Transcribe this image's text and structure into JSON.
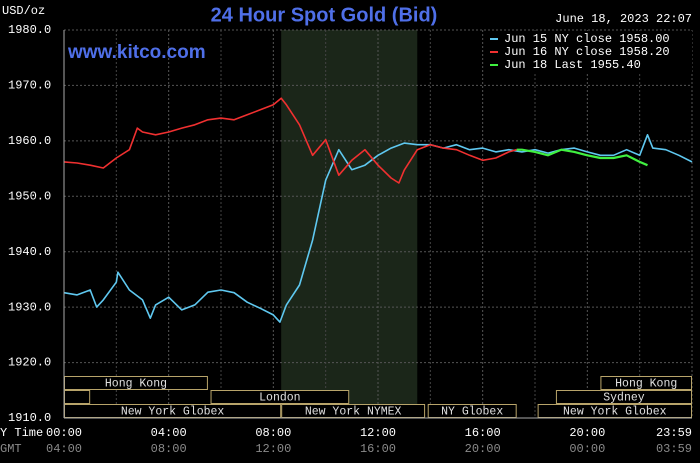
{
  "chart_data": {
    "type": "line",
    "title": "24 Hour Spot Gold (Bid)",
    "y_unit": "USD/oz",
    "timestamp": "June 18, 2023 22:07",
    "source": "www.kitco.com",
    "x_axis_label": "Y Time",
    "x2_axis_label": "GMT",
    "xlim": [
      0,
      24
    ],
    "xticks": [
      {
        "value": 0,
        "label": "00:00"
      },
      {
        "value": 4,
        "label": "04:00"
      },
      {
        "value": 8,
        "label": "08:00"
      },
      {
        "value": 12,
        "label": "12:00"
      },
      {
        "value": 16,
        "label": "16:00"
      },
      {
        "value": 20,
        "label": "20:00"
      },
      {
        "value": 24,
        "label": "23:59"
      }
    ],
    "x2_tick_labels": [
      "04:00",
      "08:00",
      "12:00",
      "16:00",
      "20:00",
      "00:00",
      "03:59"
    ],
    "xminor": [
      2,
      6,
      10,
      14,
      18,
      22
    ],
    "ylim": [
      1910,
      1980
    ],
    "yticks": [
      {
        "value": 1910,
        "label": "1910.0"
      },
      {
        "value": 1920,
        "label": "1920.0"
      },
      {
        "value": 1930,
        "label": "1930.0"
      },
      {
        "value": 1940,
        "label": "1940.0"
      },
      {
        "value": 1950,
        "label": "1950.0"
      },
      {
        "value": 1960,
        "label": "1960.0"
      },
      {
        "value": 1970,
        "label": "1970.0"
      },
      {
        "value": 1980,
        "label": "1980.0"
      }
    ],
    "grid": true,
    "shaded_x": [
      8.3,
      13.5
    ],
    "series": [
      {
        "name": "Jun 15 NY close 1958.00",
        "color": "#5fc8f0",
        "x": [
          0,
          0.5,
          1,
          1.25,
          1.5,
          2,
          2.06,
          2.5,
          3,
          3.3,
          3.5,
          4,
          4.5,
          5,
          5.5,
          6,
          6.5,
          7,
          7.5,
          8,
          8.25,
          8.5,
          9,
          9.5,
          10,
          10.5,
          11,
          11.5,
          12,
          12.5,
          13,
          13.5,
          14,
          14.5,
          15,
          15.5,
          16,
          16.5,
          17,
          17.5,
          18,
          18.5,
          19,
          19.5,
          20,
          20.5,
          21,
          21.5,
          22,
          22.3,
          22.5,
          23,
          23.5,
          24
        ],
        "values": [
          1932.6,
          1932.2,
          1933.1,
          1930.0,
          1931.3,
          1934.5,
          1936.3,
          1933.1,
          1931.3,
          1928.0,
          1930.4,
          1931.8,
          1929.5,
          1930.4,
          1932.7,
          1933.1,
          1932.6,
          1930.9,
          1929.8,
          1928.6,
          1927.3,
          1930.4,
          1934.0,
          1942.1,
          1952.9,
          1958.4,
          1954.8,
          1955.6,
          1957.4,
          1958.7,
          1959.6,
          1959.3,
          1959.3,
          1958.7,
          1959.3,
          1958.4,
          1958.7,
          1958.0,
          1958.4,
          1958.0,
          1958.4,
          1957.8,
          1958.4,
          1958.7,
          1958.0,
          1957.4,
          1957.4,
          1958.4,
          1957.4,
          1961.1,
          1958.7,
          1958.4,
          1957.4,
          1956.2
        ]
      },
      {
        "name": "Jun 16 NY close 1958.20",
        "color": "#f03030",
        "x": [
          0,
          0.5,
          1,
          1.5,
          2,
          2.5,
          2.8,
          3,
          3.5,
          4,
          4.5,
          5,
          5.5,
          6,
          6.5,
          7,
          7.5,
          8,
          8.3,
          8.5,
          9,
          9.5,
          10,
          10.5,
          11,
          11.5,
          12,
          12.5,
          12.8,
          13,
          13.5,
          14,
          14.5,
          15,
          15.5,
          16,
          16.5,
          17,
          17.3
        ],
        "values": [
          1956.2,
          1956.0,
          1955.6,
          1955.1,
          1956.9,
          1958.4,
          1962.3,
          1961.6,
          1961.1,
          1961.6,
          1962.3,
          1962.9,
          1963.8,
          1964.1,
          1963.8,
          1964.7,
          1965.6,
          1966.5,
          1967.7,
          1966.5,
          1962.9,
          1957.4,
          1960.2,
          1953.8,
          1956.5,
          1958.4,
          1955.6,
          1953.3,
          1952.4,
          1954.7,
          1958.4,
          1959.3,
          1958.7,
          1958.4,
          1957.4,
          1956.5,
          1956.9,
          1958.0,
          1958.4
        ]
      },
      {
        "name": "Jun 18 Last 1955.40",
        "color": "#40f040",
        "x": [
          17.3,
          17.5,
          18,
          18.5,
          19,
          19.5,
          20,
          20.5,
          21,
          21.5,
          22,
          22.3
        ],
        "values": [
          1958.4,
          1958.4,
          1958.0,
          1957.4,
          1958.4,
          1958.0,
          1957.4,
          1956.9,
          1956.9,
          1957.4,
          1956.2,
          1955.6
        ]
      }
    ],
    "sessions": [
      {
        "label": "Hong Kong",
        "start": 0,
        "end": 5.5,
        "row": 0
      },
      {
        "label": "Hong Kong",
        "start": 20.5,
        "end": 24,
        "row": 0
      },
      {
        "label": null,
        "start": 0,
        "end": 1.0,
        "row": 1
      },
      {
        "label": "London",
        "start": 5.6,
        "end": 10.9,
        "row": 1
      },
      {
        "label": "Sydney",
        "start": 18.8,
        "end": 24,
        "row": 1
      },
      {
        "label": "New York Globex",
        "start": 0,
        "end": 8.3,
        "row": 2
      },
      {
        "label": "New York NYMEX",
        "start": 8.3,
        "end": 13.8,
        "row": 2
      },
      {
        "label": "NY Globex",
        "start": 13.9,
        "end": 17.3,
        "row": 2
      },
      {
        "label": "New York Globex",
        "start": 18.1,
        "end": 24,
        "row": 2
      }
    ]
  }
}
